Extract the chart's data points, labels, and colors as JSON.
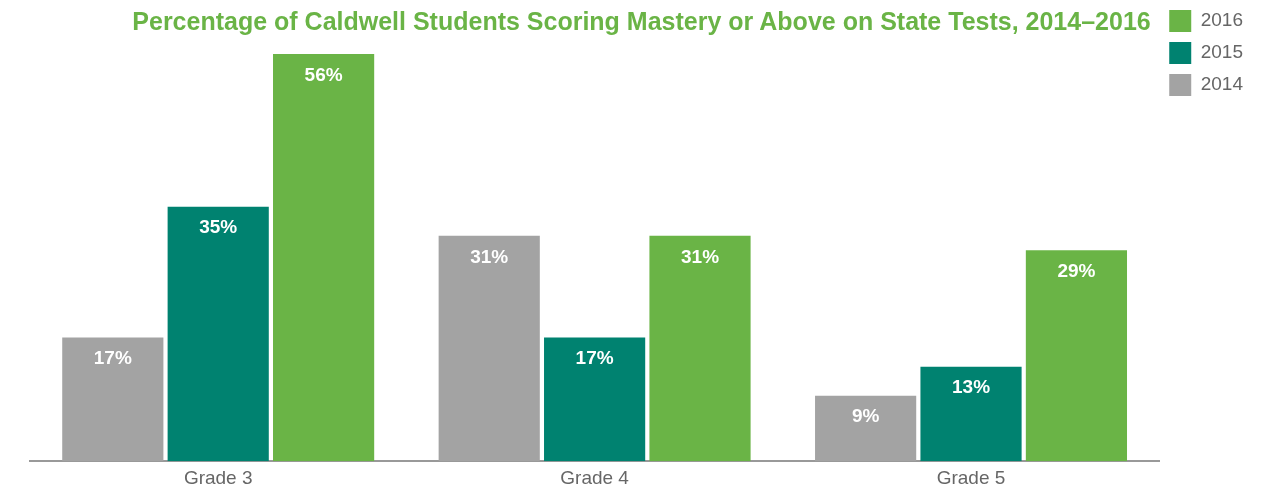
{
  "chart_data": {
    "type": "bar",
    "title": "Percentage of Caldwell Students Scoring Mastery or Above on State Tests, 2014–2016",
    "categories": [
      "Grade 3",
      "Grade 4",
      "Grade 5"
    ],
    "series": [
      {
        "name": "2014",
        "color": "#a3a3a3",
        "values": [
          17,
          31,
          9
        ],
        "value_labels": [
          "17%",
          "31%",
          "9%"
        ]
      },
      {
        "name": "2015",
        "color": "#008270",
        "values": [
          35,
          17,
          13
        ],
        "value_labels": [
          "35%",
          "17%",
          "13%"
        ]
      },
      {
        "name": "2016",
        "color": "#6ab446",
        "values": [
          56,
          31,
          29
        ],
        "value_labels": [
          "56%",
          "31%",
          "29%"
        ]
      }
    ],
    "legend": "right",
    "grid": false
  }
}
